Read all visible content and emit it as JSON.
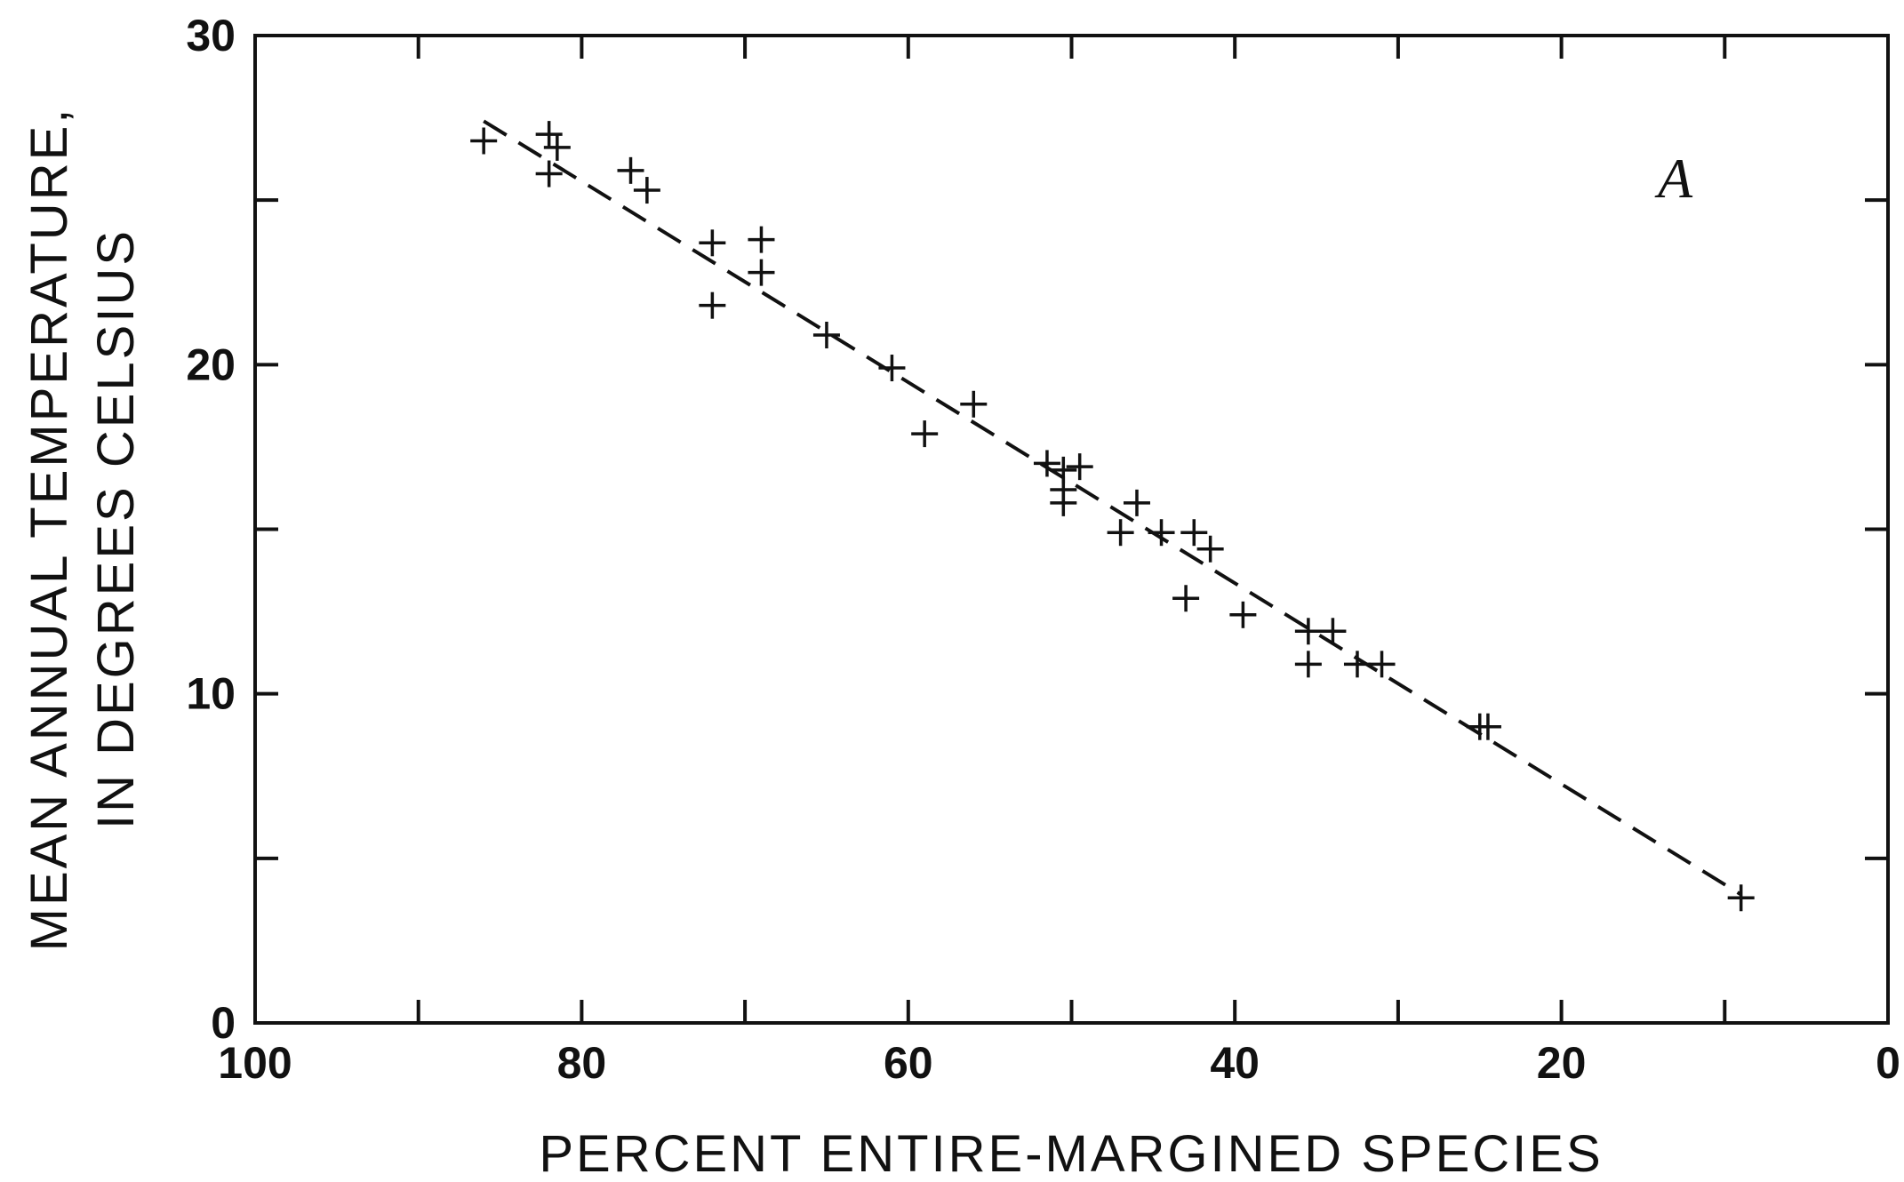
{
  "chart_data": {
    "type": "scatter",
    "panel_label": "A",
    "xlabel": "PERCENT ENTIRE-MARGINED SPECIES",
    "ylabel_lines": [
      "MEAN ANNUAL TEMPERATURE,",
      "IN DEGREES CELSIUS"
    ],
    "xlim": [
      100,
      0
    ],
    "ylim": [
      0,
      30
    ],
    "x_reversed": true,
    "x_ticks": [
      100,
      80,
      60,
      40,
      20,
      0
    ],
    "x_minor_ticks": [
      90,
      70,
      50,
      30,
      10
    ],
    "y_ticks": [
      0,
      10,
      20,
      30
    ],
    "y_minor_ticks": [
      5,
      15,
      25
    ],
    "grid": false,
    "marker": "plus",
    "series": [
      {
        "points": [
          {
            "x": 86,
            "y": 26.8
          },
          {
            "x": 82,
            "y": 27.0
          },
          {
            "x": 81.5,
            "y": 26.6
          },
          {
            "x": 82,
            "y": 25.8
          },
          {
            "x": 77,
            "y": 25.9
          },
          {
            "x": 76,
            "y": 25.3
          },
          {
            "x": 72,
            "y": 23.7
          },
          {
            "x": 69,
            "y": 23.8
          },
          {
            "x": 69,
            "y": 22.8
          },
          {
            "x": 72,
            "y": 21.8
          },
          {
            "x": 65,
            "y": 20.9
          },
          {
            "x": 61,
            "y": 19.9
          },
          {
            "x": 56,
            "y": 18.8
          },
          {
            "x": 59,
            "y": 17.9
          },
          {
            "x": 51.5,
            "y": 17.0
          },
          {
            "x": 50.5,
            "y": 16.8
          },
          {
            "x": 49.5,
            "y": 16.9
          },
          {
            "x": 50.5,
            "y": 16.2
          },
          {
            "x": 50.5,
            "y": 15.8
          },
          {
            "x": 46,
            "y": 15.8
          },
          {
            "x": 47,
            "y": 14.9
          },
          {
            "x": 44.5,
            "y": 14.9
          },
          {
            "x": 42.5,
            "y": 14.9
          },
          {
            "x": 41.5,
            "y": 14.4
          },
          {
            "x": 43,
            "y": 12.9
          },
          {
            "x": 39.5,
            "y": 12.4
          },
          {
            "x": 35.5,
            "y": 11.9
          },
          {
            "x": 34,
            "y": 11.9
          },
          {
            "x": 35.5,
            "y": 10.9
          },
          {
            "x": 32.5,
            "y": 10.9
          },
          {
            "x": 31,
            "y": 10.9
          },
          {
            "x": 25,
            "y": 9.0
          },
          {
            "x": 24.5,
            "y": 9.0
          },
          {
            "x": 9,
            "y": 3.8
          }
        ]
      }
    ],
    "fit_line": {
      "style": "dashed",
      "x": [
        86,
        9
      ],
      "y": [
        27.4,
        3.9
      ]
    }
  }
}
